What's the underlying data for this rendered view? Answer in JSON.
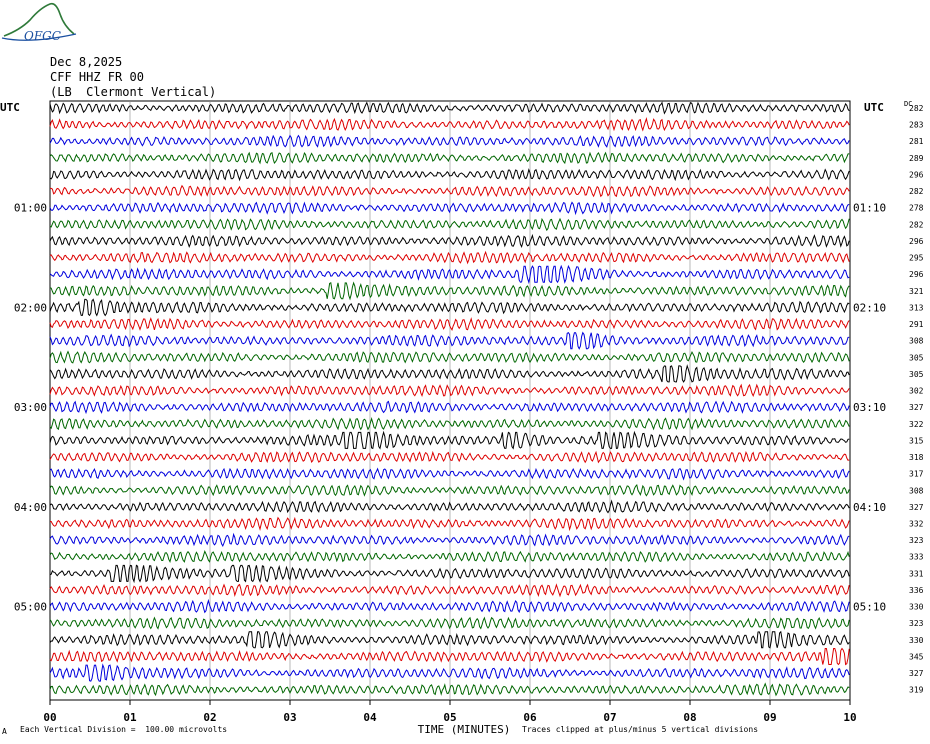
{
  "header": {
    "logo_text": "OFGC",
    "date": "Dec 8,2025",
    "channel": "CFF HHZ FR 00",
    "location": "(LB  Clermont Vertical)"
  },
  "axes": {
    "left_label": "UTC",
    "right_label": "UTC",
    "dc_label": "DC",
    "left_hours": [
      "01:00",
      "02:00",
      "03:00",
      "04:00",
      "05:00"
    ],
    "right_hours": [
      "01:10",
      "02:10",
      "03:10",
      "04:10",
      "05:10"
    ],
    "x_ticks": [
      "00",
      "01",
      "02",
      "03",
      "04",
      "05",
      "06",
      "07",
      "08",
      "09",
      "10"
    ],
    "x_label": "TIME (MINUTES)"
  },
  "footer": {
    "scale_note": "Each Vertical Division =  100.00 microvolts",
    "clip_note": "Traces clipped at plus/minus 5 vertical divisions",
    "corner_mark": "A"
  },
  "colors": {
    "trace_cycle": [
      "#000000",
      "#dd0000",
      "#0000dd",
      "#006600"
    ],
    "grid": "#888888"
  },
  "chart_data": {
    "type": "line",
    "title": "",
    "xlabel": "TIME (MINUTES)",
    "ylabel": "UTC",
    "xlim": [
      0,
      10
    ],
    "rows_per_hour": 6,
    "first_row_start_utc": "00:10",
    "dc_offsets": [
      282,
      283,
      281,
      289,
      296,
      282,
      278,
      282,
      296,
      295,
      296,
      321,
      313,
      291,
      308,
      305,
      305,
      302,
      327,
      322,
      315,
      318,
      317,
      308,
      327,
      332,
      323,
      333,
      331,
      336,
      330,
      323,
      330,
      345,
      327,
      319
    ],
    "events": [
      {
        "row": 11,
        "minute": 3.6,
        "amplitude": 1.5
      },
      {
        "row": 12,
        "minute": 0.5,
        "amplitude": 1.3
      },
      {
        "row": 10,
        "minute": 6.0,
        "amplitude": 1.3
      },
      {
        "row": 10,
        "minute": 6.2,
        "amplitude": 1.2
      },
      {
        "row": 14,
        "minute": 6.6,
        "amplitude": 1.6
      },
      {
        "row": 16,
        "minute": 7.8,
        "amplitude": 1.5
      },
      {
        "row": 20,
        "minute": 3.8,
        "amplitude": 3.0
      },
      {
        "row": 20,
        "minute": 5.8,
        "amplitude": 1.3
      },
      {
        "row": 20,
        "minute": 7.0,
        "amplitude": 1.4
      },
      {
        "row": 28,
        "minute": 0.9,
        "amplitude": 1.8
      },
      {
        "row": 28,
        "minute": 2.4,
        "amplitude": 1.5
      },
      {
        "row": 32,
        "minute": 2.6,
        "amplitude": 1.4
      },
      {
        "row": 32,
        "minute": 9.0,
        "amplitude": 1.4
      },
      {
        "row": 33,
        "minute": 9.8,
        "amplitude": 1.2
      },
      {
        "row": 34,
        "minute": 0.6,
        "amplitude": 1.2
      }
    ]
  }
}
